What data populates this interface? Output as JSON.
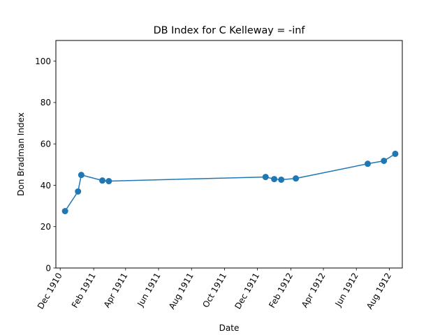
{
  "chart_data": {
    "type": "line",
    "title": "DB Index for C Kelleway = -inf",
    "xlabel": "Date",
    "ylabel": "Don Bradman Index",
    "ylim": [
      0,
      110
    ],
    "xlim": [
      "1910-11-23",
      "1912-08-25"
    ],
    "grid": false,
    "color": "#1f77b4",
    "x_ticks": [
      "1910-12-01",
      "1911-02-01",
      "1911-04-01",
      "1911-06-01",
      "1911-08-01",
      "1911-10-01",
      "1911-12-01",
      "1912-02-01",
      "1912-04-01",
      "1912-06-01",
      "1912-08-01"
    ],
    "x_tick_labels": [
      "Dec 1910",
      "Feb 1911",
      "Apr 1911",
      "Jun 1911",
      "Aug 1911",
      "Oct 1911",
      "Dec 1911",
      "Feb 1912",
      "Apr 1912",
      "Jun 1912",
      "Aug 1912"
    ],
    "y_ticks": [
      0,
      20,
      40,
      60,
      80,
      100
    ],
    "series": [
      {
        "x": [
          "1910-12-10",
          "1911-01-03",
          "1911-01-09",
          "1911-02-17",
          "1911-03-01",
          "1911-12-16",
          "1912-01-01",
          "1912-01-14",
          "1912-02-10",
          "1912-06-22",
          "1912-07-22",
          "1912-08-12"
        ],
        "y": [
          27.5,
          37,
          45,
          42.3,
          42,
          44,
          43,
          42.7,
          43.3,
          50.4,
          51.8,
          55.2
        ]
      }
    ]
  }
}
